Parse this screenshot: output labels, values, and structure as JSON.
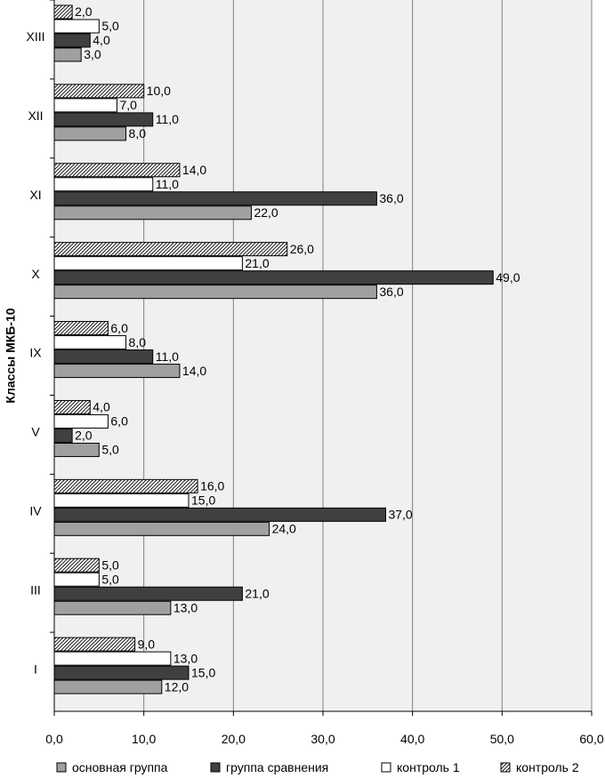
{
  "chart_data": {
    "type": "bar",
    "orientation": "horizontal",
    "ylabel": "Классы МКБ-10",
    "xlabel": "",
    "xlim": [
      0,
      60
    ],
    "xticks": [
      "0,0",
      "10,0",
      "20,0",
      "30,0",
      "40,0",
      "50,0",
      "60,0"
    ],
    "grid": true,
    "legend_position": "bottom",
    "categories": [
      "XIII",
      "XII",
      "XI",
      "X",
      "IX",
      "V",
      "IV",
      "III",
      "I"
    ],
    "series": [
      {
        "name": "контроль 2",
        "style": "hatch",
        "fill": "#ffffff",
        "stroke": "#000000",
        "values": [
          2,
          10,
          14,
          26,
          6,
          4,
          16,
          5,
          9
        ],
        "labels": [
          "2,0",
          "10,0",
          "14,0",
          "26,0",
          "6,0",
          "4,0",
          "16,0",
          "5,0",
          "9,0"
        ]
      },
      {
        "name": "контроль 1",
        "style": "solid",
        "fill": "#ffffff",
        "stroke": "#000000",
        "values": [
          5,
          7,
          11,
          21,
          8,
          6,
          15,
          5,
          13
        ],
        "labels": [
          "5,0",
          "7,0",
          "11,0",
          "21,0",
          "8,0",
          "6,0",
          "15,0",
          "5,0",
          "13,0"
        ]
      },
      {
        "name": "группа сравнения",
        "style": "solid",
        "fill": "#404040",
        "stroke": "#000000",
        "values": [
          4,
          11,
          36,
          49,
          11,
          2,
          37,
          21,
          15
        ],
        "labels": [
          "4,0",
          "11,0",
          "36,0",
          "49,0",
          "11,0",
          "2,0",
          "37,0",
          "21,0",
          "15,0"
        ]
      },
      {
        "name": "основная группа",
        "style": "solid",
        "fill": "#a0a0a0",
        "stroke": "#000000",
        "values": [
          3,
          8,
          22,
          36,
          14,
          5,
          24,
          13,
          12
        ],
        "labels": [
          "3,0",
          "8,0",
          "22,0",
          "36,0",
          "14,0",
          "5,0",
          "24,0",
          "13,0",
          "12,0"
        ]
      }
    ],
    "legend_order": [
      "основная группа",
      "группа сравнения",
      "контроль 1",
      "контроль 2"
    ]
  }
}
